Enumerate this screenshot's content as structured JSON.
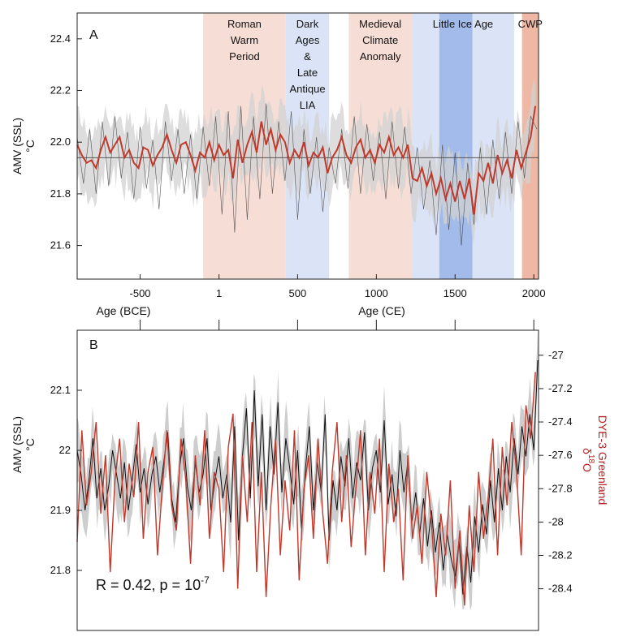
{
  "colors": {
    "amv_line": "#c0392b",
    "dye3_line": "#c0392b",
    "raw_line": "#333333",
    "envelope": "#c8c8c8",
    "warm_band": "#f6ddd5",
    "cold_band": "#dbe4f6",
    "lia_core": "#8faee6",
    "cwp_band": "#efb8a4",
    "right_axis_label": "#b22222"
  },
  "chart_data": [
    {
      "panel": "A",
      "type": "line",
      "xlabel_left": "Age (BCE)",
      "xlabel_right": "Age (CE)",
      "ylabel": "AMV (SSL)",
      "ylabel_unit": "°C",
      "xlim": [
        -900,
        2030
      ],
      "ylim": [
        21.47,
        22.5
      ],
      "x_ticks": [
        -500,
        1,
        500,
        1000,
        1500,
        2000
      ],
      "x_tick_labels": [
        "-500",
        "1",
        "500",
        "1000",
        "1500",
        "2000"
      ],
      "y_ticks": [
        21.6,
        21.8,
        22.0,
        22.2,
        22.4
      ],
      "y_tick_labels": [
        "21.6",
        "21.8",
        "22.0",
        "22.2",
        "22.4"
      ],
      "reference_line": 21.94,
      "periods": [
        {
          "label": [
            "Roman",
            "Warm",
            "Period"
          ],
          "start": -100,
          "end": 425,
          "kind": "warm"
        },
        {
          "label": [
            "Dark",
            "Ages",
            "&",
            "Late",
            "Antique",
            "LIA"
          ],
          "start": 425,
          "end": 700,
          "kind": "cold"
        },
        {
          "label": [
            "Medieval",
            "Climate",
            "Anomaly"
          ],
          "start": 825,
          "end": 1225,
          "kind": "warm"
        },
        {
          "label": [
            "Little Ice Age"
          ],
          "start": 1225,
          "end": 1875,
          "kind": "cold",
          "core": [
            1400,
            1610
          ]
        },
        {
          "label": [
            "CWP"
          ],
          "start": 1925,
          "end": 2030,
          "kind": "cwp"
        }
      ],
      "series": [
        {
          "role": "smoothed",
          "x": [
            -900,
            -870,
            -840,
            -810,
            -780,
            -750,
            -720,
            -690,
            -660,
            -630,
            -600,
            -570,
            -540,
            -510,
            -480,
            -450,
            -420,
            -390,
            -360,
            -330,
            -300,
            -270,
            -240,
            -210,
            -180,
            -150,
            -120,
            -90,
            -60,
            -30,
            0,
            30,
            60,
            90,
            120,
            150,
            180,
            210,
            240,
            270,
            300,
            330,
            360,
            390,
            420,
            450,
            480,
            510,
            540,
            570,
            600,
            630,
            660,
            690,
            720,
            750,
            780,
            810,
            840,
            870,
            900,
            930,
            960,
            990,
            1020,
            1050,
            1080,
            1110,
            1140,
            1170,
            1200,
            1230,
            1260,
            1290,
            1320,
            1350,
            1380,
            1410,
            1440,
            1470,
            1500,
            1530,
            1560,
            1590,
            1620,
            1650,
            1680,
            1710,
            1740,
            1770,
            1800,
            1830,
            1860,
            1890,
            1920,
            1950,
            1980,
            2010
          ],
          "values": [
            21.99,
            21.95,
            21.92,
            21.93,
            21.9,
            21.97,
            22.02,
            21.96,
            21.99,
            22.02,
            21.94,
            21.97,
            21.92,
            21.9,
            21.98,
            21.97,
            21.91,
            21.95,
            21.98,
            22.03,
            21.97,
            21.92,
            21.99,
            22.0,
            21.95,
            21.89,
            21.96,
            21.94,
            22.0,
            21.93,
            21.99,
            21.95,
            21.97,
            21.86,
            22.01,
            21.92,
            21.99,
            22.04,
            21.96,
            22.08,
            21.99,
            22.05,
            21.97,
            22.03,
            22.0,
            21.92,
            21.97,
            21.94,
            22.0,
            21.91,
            21.96,
            21.94,
            21.98,
            21.88,
            21.94,
            21.97,
            22.02,
            21.95,
            21.92,
            21.98,
            22.01,
            21.94,
            21.97,
            21.92,
            21.99,
            21.96,
            22.02,
            21.95,
            21.98,
            21.94,
            21.99,
            21.86,
            21.85,
            21.9,
            21.83,
            21.88,
            21.8,
            21.86,
            21.78,
            21.84,
            21.77,
            21.85,
            21.78,
            21.86,
            21.72,
            21.88,
            21.85,
            21.92,
            21.84,
            21.95,
            21.88,
            21.93,
            21.86,
            21.97,
            21.9,
            21.96,
            22.02,
            22.14
          ]
        },
        {
          "role": "raw",
          "x": [
            -900,
            -860,
            -820,
            -780,
            -740,
            -700,
            -660,
            -620,
            -580,
            -540,
            -500,
            -460,
            -420,
            -380,
            -340,
            -300,
            -260,
            -220,
            -180,
            -140,
            -100,
            -60,
            -20,
            20,
            60,
            100,
            140,
            180,
            220,
            260,
            300,
            340,
            380,
            420,
            460,
            500,
            540,
            580,
            620,
            660,
            700,
            740,
            780,
            820,
            860,
            900,
            940,
            980,
            1020,
            1060,
            1100,
            1140,
            1180,
            1220,
            1260,
            1300,
            1340,
            1380,
            1420,
            1460,
            1500,
            1540,
            1580,
            1620,
            1660,
            1700,
            1740,
            1780,
            1820,
            1860,
            1900,
            1940,
            1980,
            2020
          ],
          "values": [
            22.02,
            21.84,
            22.05,
            21.8,
            22.08,
            21.83,
            22.1,
            21.86,
            22.04,
            21.78,
            22.06,
            21.82,
            22.01,
            21.74,
            22.08,
            21.85,
            22.05,
            21.8,
            22.03,
            21.78,
            22.06,
            21.83,
            22.1,
            21.72,
            22.12,
            21.65,
            22.14,
            21.7,
            22.1,
            21.78,
            22.15,
            21.8,
            22.08,
            21.85,
            22.12,
            21.7,
            22.05,
            21.8,
            22.02,
            21.73,
            21.98,
            21.84,
            22.05,
            21.82,
            22.1,
            21.8,
            22.07,
            21.85,
            22.04,
            21.78,
            22.08,
            21.82,
            22.06,
            21.8,
            21.98,
            21.74,
            21.93,
            21.64,
            21.99,
            21.66,
            21.96,
            21.6,
            21.92,
            21.68,
            21.98,
            21.72,
            22.01,
            21.78,
            22.04,
            21.8,
            22.08,
            21.86,
            22.1,
            22.05
          ]
        }
      ]
    },
    {
      "panel": "B",
      "type": "line",
      "ylabel_left": "AMV (SSL)",
      "ylabel_left_unit": "°C",
      "ylabel_right": "DYE-3 Greenland",
      "ylabel_right_symbol": "δ",
      "ylabel_right_sup": "18",
      "ylabel_right_suffix": "O",
      "xlim": [
        -900,
        2030
      ],
      "ylim_left": [
        21.7,
        22.2
      ],
      "y_ticks_left": [
        21.8,
        21.9,
        22.0,
        22.1
      ],
      "y_tick_labels_left": [
        "21.8",
        "21.9",
        "22",
        "22.1"
      ],
      "ylim_right": [
        -28.65,
        -26.85
      ],
      "y_ticks_right": [
        -28.4,
        -28.2,
        -28.0,
        -27.8,
        -27.6,
        -27.4,
        -27.2,
        -27.0
      ],
      "y_tick_labels_right": [
        "-28.4",
        "-28.2",
        "-28",
        "-27.8",
        "-27.6",
        "-27.4",
        "-27.2",
        "-27"
      ],
      "annotation": {
        "prefix": "R = 0.42, p = 10",
        "sup": "-7"
      },
      "series": [
        {
          "role": "AMV (SSL)",
          "axis": "left",
          "x": [
            -900,
            -875,
            -850,
            -825,
            -800,
            -775,
            -750,
            -725,
            -700,
            -675,
            -650,
            -625,
            -600,
            -575,
            -550,
            -525,
            -500,
            -475,
            -450,
            -425,
            -400,
            -375,
            -350,
            -325,
            -300,
            -275,
            -250,
            -225,
            -200,
            -175,
            -150,
            -125,
            -100,
            -75,
            -50,
            -25,
            0,
            25,
            50,
            75,
            100,
            125,
            150,
            175,
            200,
            225,
            250,
            275,
            300,
            325,
            350,
            375,
            400,
            425,
            450,
            475,
            500,
            525,
            550,
            575,
            600,
            625,
            650,
            675,
            700,
            725,
            750,
            775,
            800,
            825,
            850,
            875,
            900,
            925,
            950,
            975,
            1000,
            1025,
            1050,
            1075,
            1100,
            1125,
            1150,
            1175,
            1200,
            1225,
            1250,
            1275,
            1300,
            1325,
            1350,
            1375,
            1400,
            1425,
            1450,
            1475,
            1500,
            1525,
            1550,
            1575,
            1600,
            1625,
            1650,
            1675,
            1700,
            1725,
            1750,
            1775,
            1800,
            1825,
            1850,
            1875,
            1900,
            1925,
            1950,
            1975,
            2000,
            2025
          ],
          "values": [
            22.0,
            21.96,
            21.9,
            21.95,
            22.02,
            21.92,
            21.97,
            21.9,
            21.94,
            22.0,
            21.96,
            21.92,
            21.98,
            21.9,
            21.95,
            22.01,
            21.93,
            21.97,
            21.91,
            21.96,
            21.99,
            21.93,
            21.98,
            22.03,
            21.92,
            21.88,
            21.97,
            22.02,
            21.94,
            21.9,
            21.98,
            21.93,
            21.96,
            22.02,
            21.9,
            21.95,
            21.99,
            21.92,
            21.96,
            21.88,
            22.04,
            21.85,
            21.99,
            22.07,
            21.92,
            22.1,
            21.94,
            22.06,
            21.9,
            22.04,
            21.96,
            22.08,
            21.93,
            22.02,
            21.97,
            21.91,
            22.0,
            21.87,
            21.97,
            22.04,
            21.9,
            21.98,
            21.93,
            22.06,
            21.85,
            21.95,
            21.9,
            21.99,
            21.94,
            22.02,
            21.92,
            21.98,
            21.95,
            22.03,
            21.9,
            21.97,
            22.0,
            21.93,
            22.05,
            21.91,
            21.96,
            21.89,
            22.0,
            21.93,
            21.98,
            21.88,
            21.93,
            21.86,
            21.92,
            21.84,
            21.9,
            21.83,
            21.88,
            21.8,
            21.86,
            21.82,
            21.79,
            21.85,
            21.76,
            21.84,
            21.78,
            21.89,
            21.83,
            21.91,
            21.86,
            21.95,
            21.88,
            21.97,
            21.9,
            21.99,
            21.93,
            22.02,
            21.96,
            22.04,
            21.99,
            22.06,
            22.0,
            22.15
          ]
        },
        {
          "role": "DYE-3 δ18O",
          "axis": "right",
          "x": [
            -900,
            -870,
            -840,
            -810,
            -780,
            -750,
            -720,
            -690,
            -660,
            -630,
            -600,
            -570,
            -540,
            -510,
            -480,
            -450,
            -420,
            -390,
            -360,
            -330,
            -300,
            -270,
            -240,
            -210,
            -180,
            -150,
            -120,
            -90,
            -60,
            -30,
            0,
            30,
            60,
            90,
            120,
            150,
            180,
            210,
            240,
            270,
            300,
            330,
            360,
            390,
            420,
            450,
            480,
            510,
            540,
            570,
            600,
            630,
            660,
            690,
            720,
            750,
            780,
            810,
            840,
            870,
            900,
            930,
            960,
            990,
            1020,
            1050,
            1080,
            1110,
            1140,
            1170,
            1200,
            1230,
            1260,
            1290,
            1320,
            1350,
            1380,
            1410,
            1440,
            1470,
            1500,
            1530,
            1560,
            1590,
            1620,
            1650,
            1680,
            1710,
            1740,
            1770,
            1800,
            1830,
            1860,
            1890,
            1920,
            1950,
            1980,
            2010
          ],
          "values": [
            -28.12,
            -27.45,
            -27.9,
            -27.7,
            -27.4,
            -27.95,
            -27.6,
            -28.3,
            -27.75,
            -27.5,
            -28.0,
            -27.65,
            -27.85,
            -27.4,
            -28.1,
            -27.7,
            -27.55,
            -28.2,
            -27.8,
            -27.45,
            -27.9,
            -28.05,
            -27.5,
            -27.75,
            -28.25,
            -27.6,
            -27.9,
            -27.45,
            -28.1,
            -27.7,
            -27.8,
            -28.3,
            -27.55,
            -27.35,
            -28.4,
            -27.6,
            -28.0,
            -27.4,
            -28.3,
            -27.7,
            -28.45,
            -27.9,
            -27.5,
            -28.2,
            -27.75,
            -28.05,
            -27.45,
            -28.35,
            -27.8,
            -27.6,
            -28.1,
            -27.5,
            -27.95,
            -28.25,
            -27.7,
            -27.4,
            -28.0,
            -27.6,
            -28.15,
            -27.8,
            -27.45,
            -28.2,
            -27.7,
            -27.95,
            -27.5,
            -28.3,
            -27.65,
            -28.0,
            -27.8,
            -28.35,
            -27.6,
            -28.1,
            -27.9,
            -28.25,
            -27.7,
            -28.0,
            -28.45,
            -27.95,
            -28.2,
            -27.75,
            -28.4,
            -28.05,
            -28.5,
            -27.9,
            -28.3,
            -27.7,
            -28.1,
            -27.85,
            -27.5,
            -28.2,
            -27.55,
            -27.9,
            -27.4,
            -27.7,
            -28.2,
            -27.3,
            -27.5,
            -27.1
          ]
        }
      ]
    }
  ]
}
